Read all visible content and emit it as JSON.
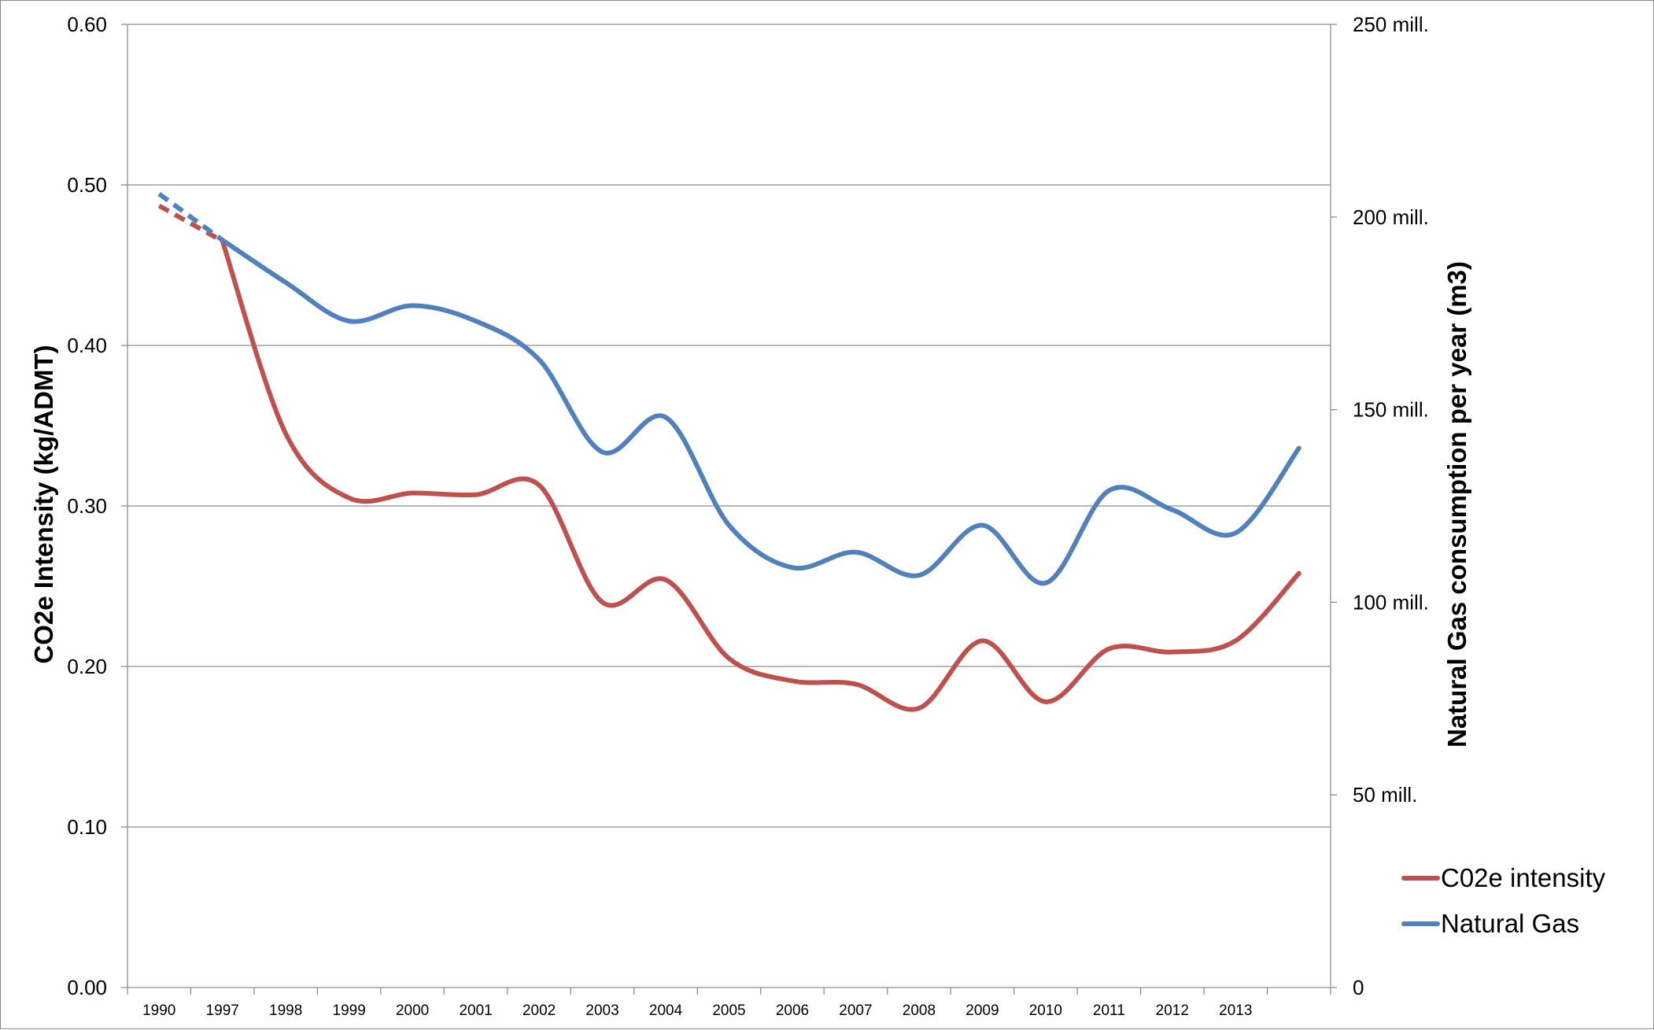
{
  "chart_data": {
    "type": "line",
    "title": "",
    "categories": [
      "1990",
      "1997",
      "1998",
      "1999",
      "2000",
      "2001",
      "2002",
      "2003",
      "2004",
      "2005",
      "2006",
      "2007",
      "2008",
      "2009",
      "2010",
      "2011",
      "2012",
      "2013",
      ""
    ],
    "ylabel_left": "CO2e Intensity (kg/ADMT)",
    "ylabel_right": "Natural Gas consumption per year (m3)",
    "ylim_left": [
      0,
      0.6
    ],
    "ylim_right": [
      0,
      250000000
    ],
    "yticks_left": [
      "0.00",
      "0.10",
      "0.20",
      "0.30",
      "0.40",
      "0.50",
      "0.60"
    ],
    "yticks_right": [
      "0",
      "50 mill.",
      "100 mill.",
      "150 mill.",
      "200 mill.",
      "250 mill."
    ],
    "grid": true,
    "legend": "right",
    "series": [
      {
        "name": "C02e intensity",
        "axis": "left",
        "color": "#c0504d",
        "dashed_segment": [
          0,
          1
        ],
        "values": [
          0.487,
          0.465,
          0.345,
          0.305,
          0.308,
          0.307,
          0.313,
          0.24,
          0.254,
          0.205,
          0.191,
          0.189,
          0.174,
          0.216,
          0.178,
          0.211,
          0.209,
          0.216,
          0.258
        ]
      },
      {
        "name": "Natural Gas",
        "axis": "right",
        "color": "#4f81bd",
        "dashed_segment": [
          0,
          1
        ],
        "values": [
          206000000,
          194000000,
          183000000,
          173000000,
          177000000,
          173000000,
          163000000,
          139000000,
          148000000,
          120000000,
          109000000,
          113000000,
          107000000,
          120000000,
          105000000,
          129000000,
          124000000,
          118000000,
          140000000
        ]
      }
    ]
  }
}
